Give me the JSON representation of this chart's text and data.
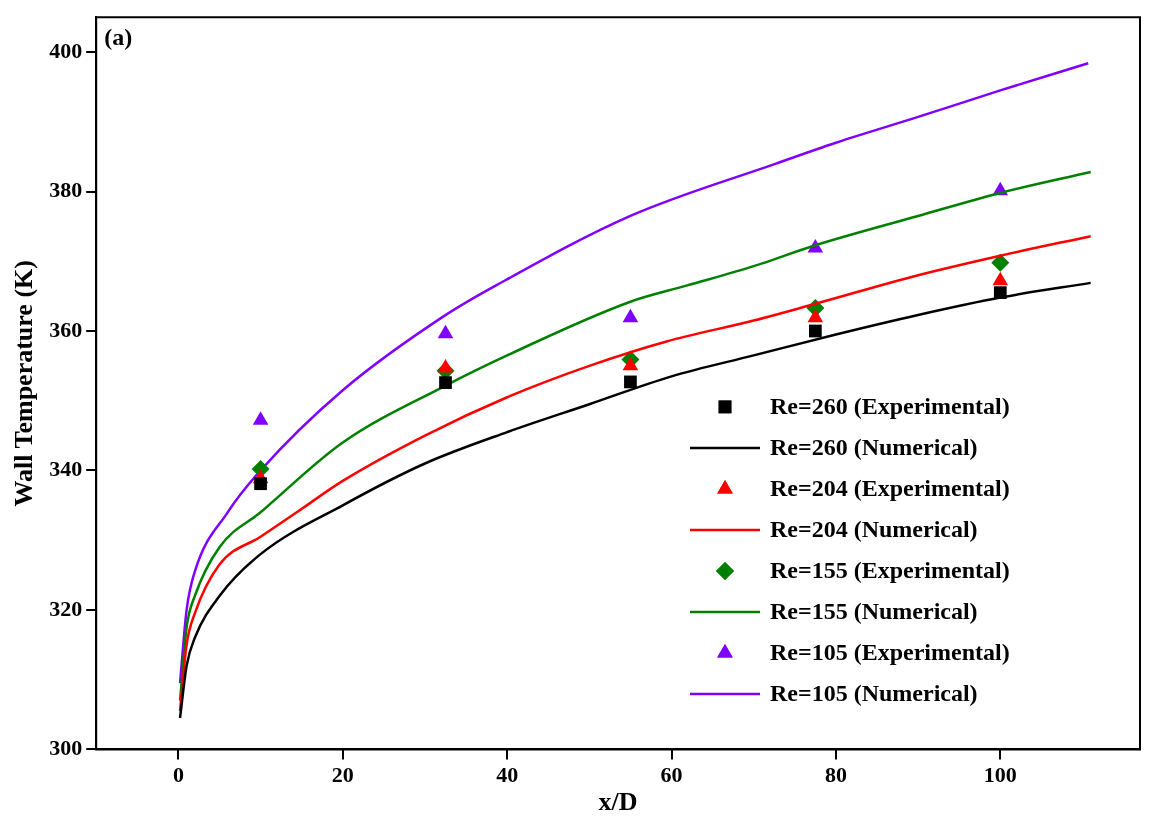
{
  "chart_data": {
    "type": "scatter",
    "xlabel": "x/D",
    "ylabel": "Wall Temperature (K)",
    "xlim": [
      -10,
      117
    ],
    "ylim": [
      300,
      405
    ],
    "xticks": [
      0,
      20,
      40,
      60,
      80,
      100
    ],
    "yticks": [
      300,
      320,
      340,
      360,
      380,
      400
    ],
    "grid": false,
    "legend": "bottom right",
    "annotations": [
      "(a)"
    ],
    "series": [
      {
        "name": "Re=260 (Experimental)",
        "marker": "square",
        "color": "#000000",
        "x": [
          10,
          32.5,
          55,
          77.5,
          100
        ],
        "values": [
          338.1,
          352.6,
          352.7,
          360.0,
          365.5
        ]
      },
      {
        "name": "Re=260 (Numerical)",
        "type": "line",
        "marker": "none",
        "color": "#000000",
        "x": [
          0.2,
          1,
          2,
          5,
          10,
          20,
          30,
          40,
          50,
          60,
          70,
          80,
          90,
          100,
          111
        ],
        "values": [
          304.5,
          312,
          316,
          322,
          328,
          335,
          341,
          345.5,
          349.5,
          353.5,
          356.5,
          359.5,
          362.3,
          364.8,
          366.9
        ]
      },
      {
        "name": "Re=204 (Experimental)",
        "marker": "triangle",
        "color": "#ff0000",
        "x": [
          10,
          32.5,
          55,
          77.5,
          100
        ],
        "values": [
          338.8,
          354.7,
          355.0,
          361.9,
          367.2
        ]
      },
      {
        "name": "Re=204 (Numerical)",
        "type": "line",
        "marker": "none",
        "color": "#ff0000",
        "x": [
          0.2,
          1,
          2,
          5,
          10,
          14.4,
          20,
          30,
          40,
          50,
          59.4,
          70,
          77.5,
          90,
          100,
          111
        ],
        "values": [
          305.5,
          315,
          319.5,
          326.5,
          330.5,
          334,
          338.5,
          345,
          350.5,
          355,
          358.5,
          361.5,
          363.9,
          368,
          370.8,
          373.6
        ]
      },
      {
        "name": "Re=155 (Experimental)",
        "marker": "diamond",
        "color": "#008000",
        "x": [
          10,
          32.5,
          55,
          77.5,
          100
        ],
        "values": [
          340.2,
          354.3,
          355.9,
          363.3,
          369.8
        ]
      },
      {
        "name": "Re=155 (Numerical)",
        "type": "line",
        "marker": "none",
        "color": "#008000",
        "x": [
          0.2,
          1,
          2,
          5,
          10,
          20,
          32.4,
          40,
          55,
          61.8,
          70,
          77.5,
          90,
          100,
          111
        ],
        "values": [
          307,
          317.5,
          322,
          329,
          334,
          344,
          352.1,
          356.5,
          364.2,
          366.5,
          369.3,
          372.3,
          376.5,
          379.8,
          382.8
        ]
      },
      {
        "name": "Re=105 (Experimental)",
        "marker": "triangle",
        "color": "#8000ff",
        "x": [
          10,
          32.5,
          55,
          77.5,
          100
        ],
        "values": [
          347.2,
          359.6,
          361.9,
          371.9,
          380.1
        ]
      },
      {
        "name": "Re=105 (Numerical)",
        "type": "line",
        "marker": "none",
        "color": "#8000ff",
        "x": [
          0.2,
          1,
          2,
          6,
          10,
          20,
          32.4,
          38.9,
          55,
          72.7,
          80,
          90,
          100,
          110.7
        ],
        "values": [
          309.5,
          320,
          325.5,
          334,
          340,
          351.5,
          362.2,
          366.7,
          376.5,
          384,
          387,
          390.7,
          394.5,
          398.4
        ]
      }
    ]
  }
}
